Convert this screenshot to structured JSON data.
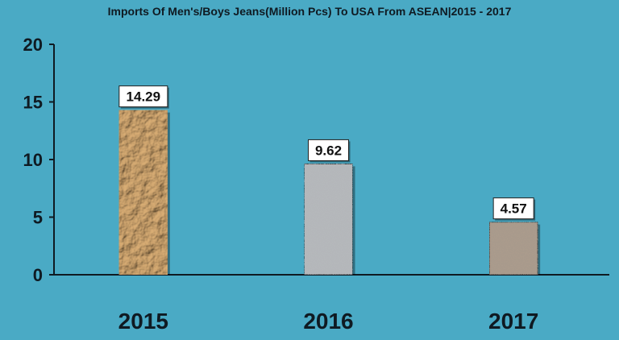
{
  "chart_data": {
    "type": "bar",
    "title": "Imports Of Men's/Boys Jeans(Million Pcs) To USA From ASEAN|2015 - 2017",
    "categories": [
      "2015",
      "2016",
      "2017"
    ],
    "values": [
      14.29,
      9.62,
      4.57
    ],
    "data_labels": [
      "14.29",
      "9.62",
      "4.57"
    ],
    "yticks": [
      "0",
      "5",
      "10",
      "15",
      "20"
    ],
    "ylim": [
      0,
      20
    ],
    "xlabel": "",
    "ylabel": "",
    "grid": false,
    "legend": "none",
    "colors": {
      "background": "#4aaac5",
      "bars": [
        "#b88a55",
        "#b5b8bb",
        "#a89a8c"
      ],
      "axis": "#0f1a22"
    }
  }
}
